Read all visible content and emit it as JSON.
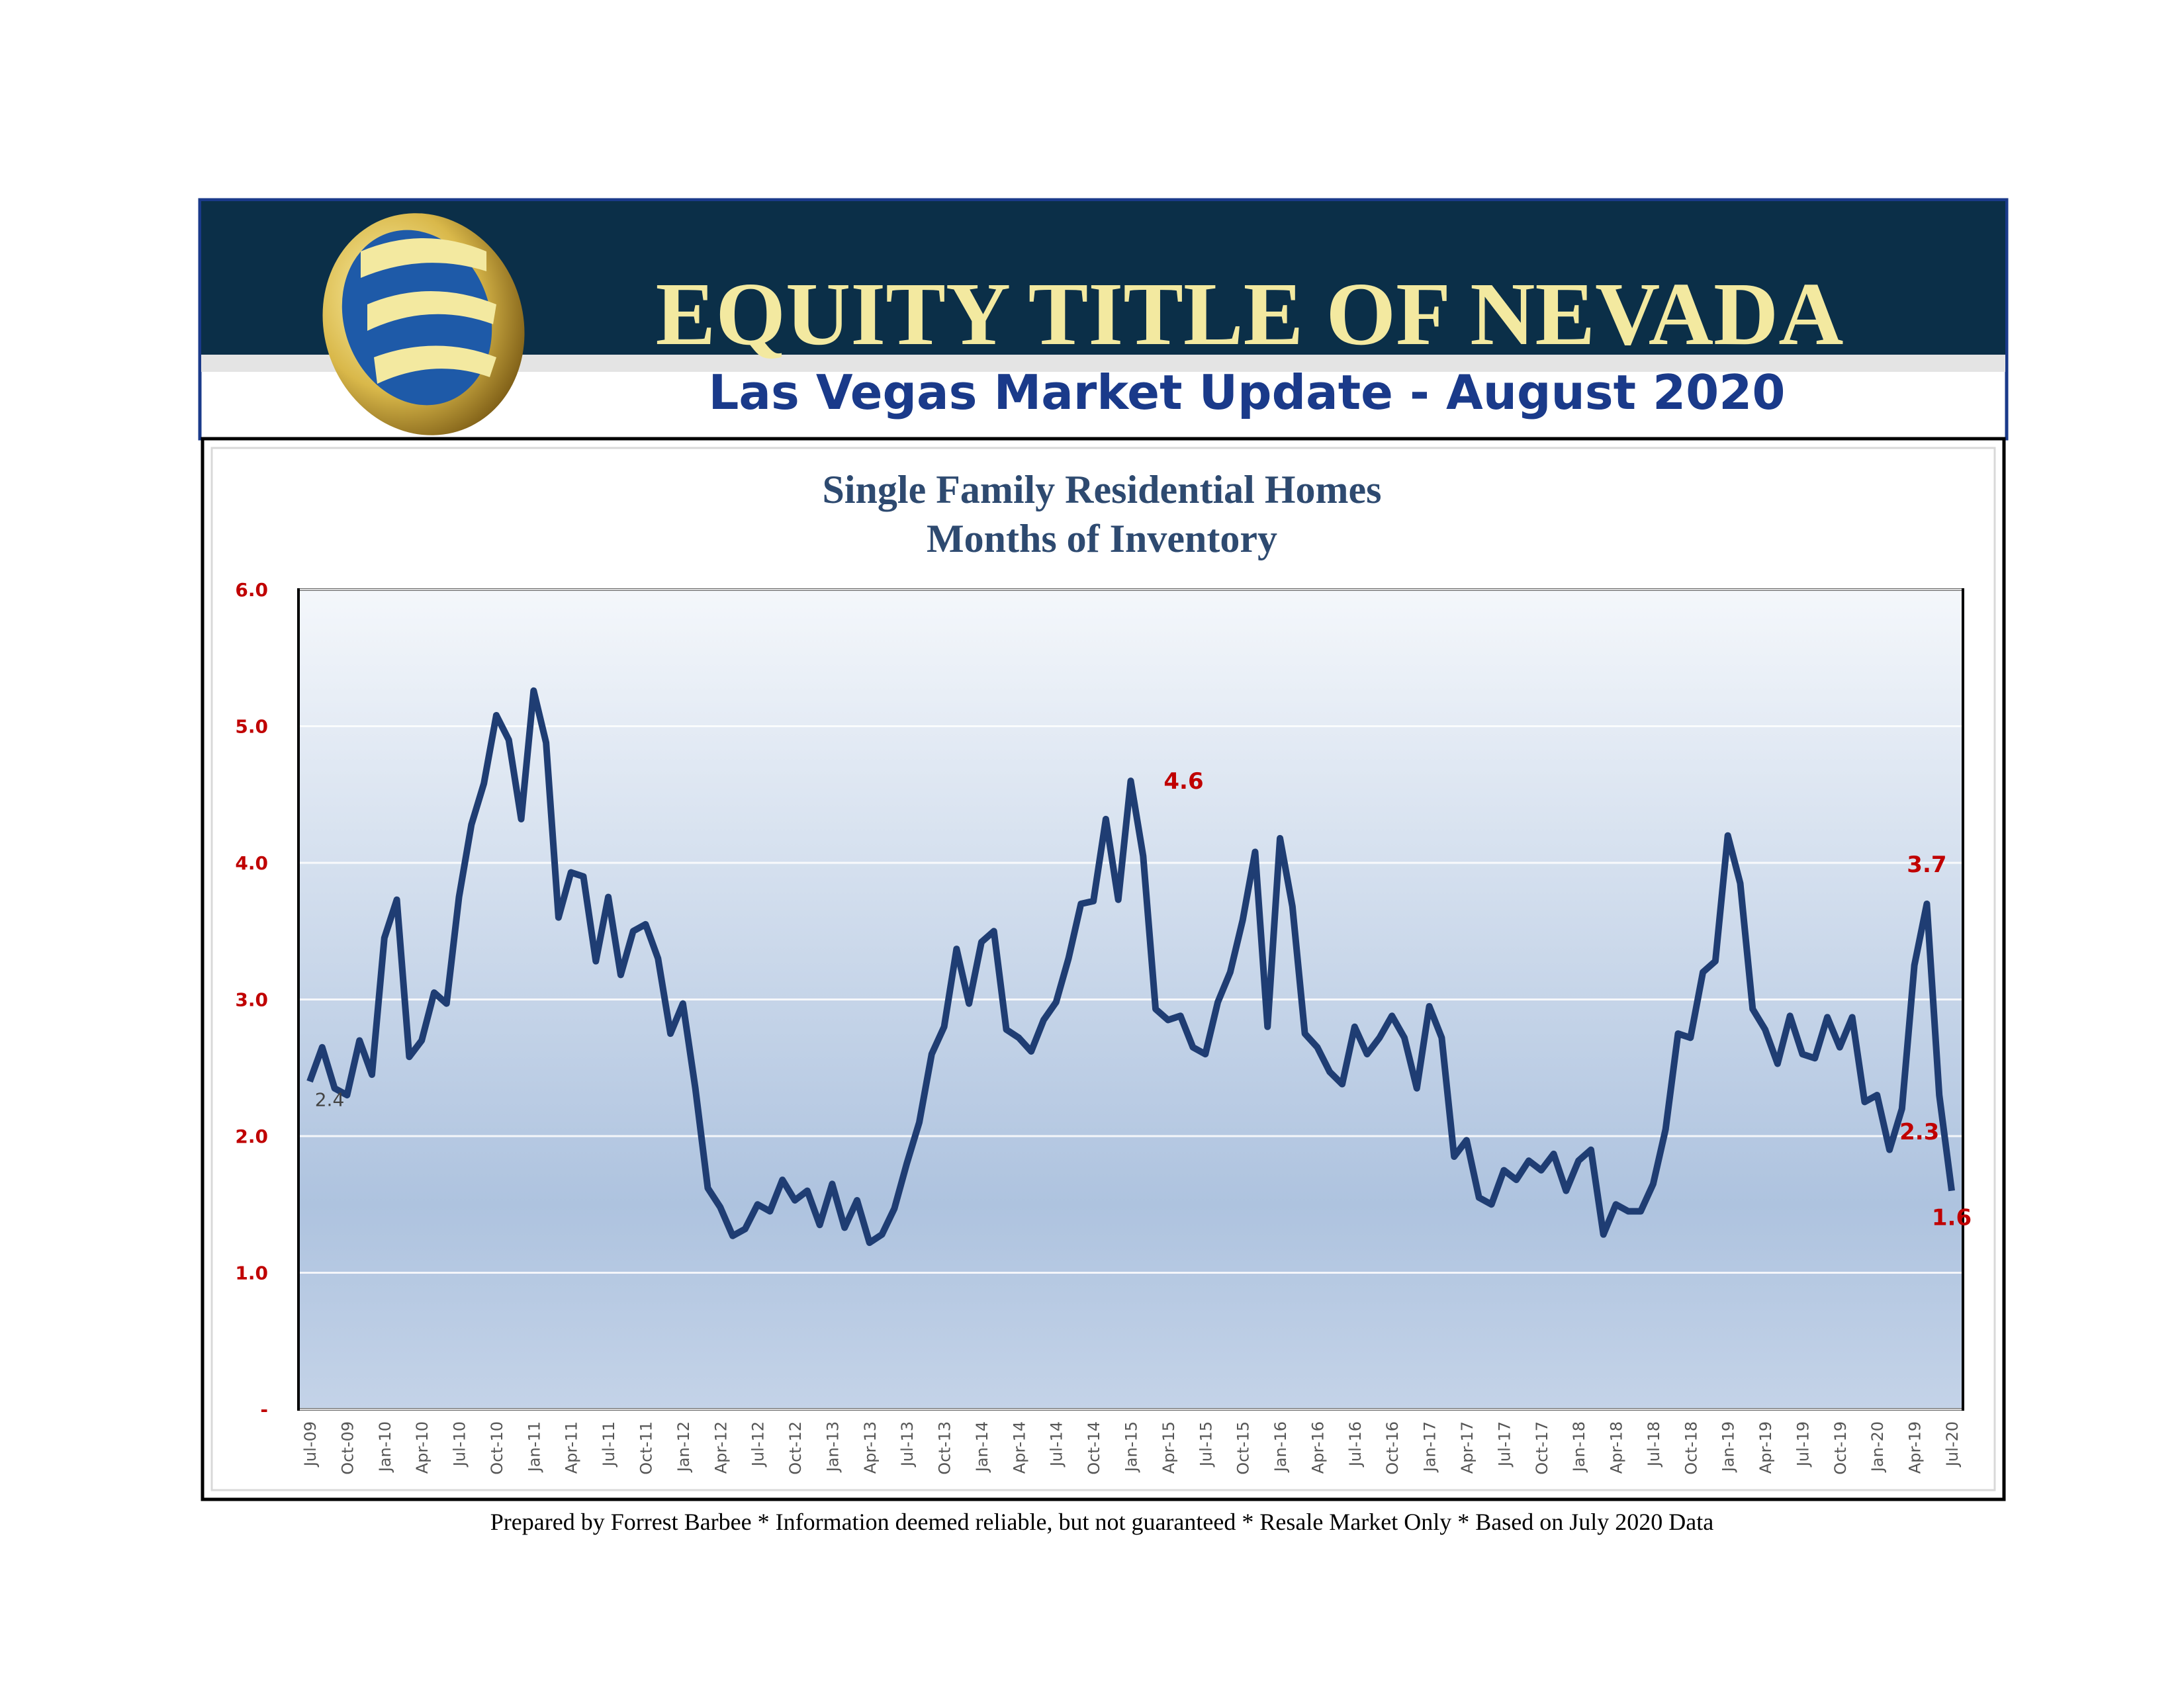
{
  "header": {
    "title": "EQUITY TITLE OF NEVADA",
    "subtitle": "Las Vegas Market Update - August 2020"
  },
  "chart_data": {
    "type": "line",
    "title": [
      "Single Family Residential Homes",
      "Months of Inventory"
    ],
    "categories": [
      "Jul-09",
      null,
      null,
      "Oct-09",
      null,
      null,
      "Jan-10",
      null,
      null,
      "Apr-10",
      null,
      null,
      "Jul-10",
      null,
      null,
      "Oct-10",
      null,
      null,
      "Jan-11",
      null,
      null,
      "Apr-11",
      null,
      null,
      "Jul-11",
      null,
      null,
      "Oct-11",
      null,
      null,
      "Jan-12",
      null,
      null,
      "Apr-12",
      null,
      null,
      "Jul-12",
      null,
      null,
      "Oct-12",
      null,
      null,
      "Jan-13",
      null,
      null,
      "Apr-13",
      null,
      null,
      "Jul-13",
      null,
      null,
      "Oct-13",
      null,
      null,
      "Jan-14",
      null,
      null,
      "Apr-14",
      null,
      null,
      "Jul-14",
      null,
      null,
      "Oct-14",
      null,
      null,
      "Jan-15",
      null,
      null,
      "Apr-15",
      null,
      null,
      "Jul-15",
      null,
      null,
      "Oct-15",
      null,
      null,
      "Jan-16",
      null,
      null,
      "Apr-16",
      null,
      null,
      "Jul-16",
      null,
      null,
      "Oct-16",
      null,
      null,
      "Jan-17",
      null,
      null,
      "Apr-17",
      null,
      null,
      "Jul-17",
      null,
      null,
      "Oct-17",
      null,
      null,
      "Jan-18",
      null,
      null,
      "Apr-18",
      null,
      null,
      "Jul-18",
      null,
      null,
      "Oct-18",
      null,
      null,
      "Jan-19",
      null,
      null,
      "Apr-19",
      null,
      null,
      "Jul-19",
      null,
      null,
      "Oct-19",
      null,
      null,
      "Jan-20",
      null,
      null,
      "Apr-19",
      null,
      null,
      "Jul-20"
    ],
    "values": [
      2.4,
      2.65,
      2.35,
      2.3,
      2.7,
      2.45,
      3.45,
      3.73,
      2.58,
      2.7,
      3.05,
      2.97,
      3.75,
      4.28,
      4.58,
      5.08,
      4.9,
      4.32,
      5.26,
      4.88,
      3.6,
      3.93,
      3.9,
      3.28,
      3.75,
      3.18,
      3.5,
      3.55,
      3.3,
      2.75,
      2.97,
      2.35,
      1.62,
      1.48,
      1.27,
      1.32,
      1.5,
      1.45,
      1.68,
      1.53,
      1.6,
      1.35,
      1.65,
      1.33,
      1.53,
      1.22,
      1.28,
      1.47,
      1.8,
      2.1,
      2.6,
      2.8,
      3.37,
      2.97,
      3.42,
      3.5,
      2.78,
      2.72,
      2.62,
      2.85,
      2.98,
      3.3,
      3.7,
      3.72,
      4.32,
      3.73,
      4.6,
      4.05,
      2.93,
      2.85,
      2.88,
      2.65,
      2.6,
      2.98,
      3.2,
      3.58,
      4.08,
      2.8,
      4.18,
      3.68,
      2.75,
      2.65,
      2.47,
      2.38,
      2.8,
      2.6,
      2.72,
      2.88,
      2.72,
      2.35,
      2.95,
      2.72,
      1.85,
      1.97,
      1.55,
      1.5,
      1.75,
      1.68,
      1.82,
      1.75,
      1.87,
      1.6,
      1.82,
      1.9,
      1.28,
      1.5,
      1.45,
      1.45,
      1.65,
      2.05,
      2.75,
      2.72,
      3.2,
      3.28,
      4.2,
      3.85,
      2.93,
      2.78,
      2.53,
      2.88,
      2.6,
      2.57,
      2.87,
      2.65,
      2.87,
      2.25,
      2.3,
      1.9,
      2.2,
      3.25,
      3.7,
      2.3,
      1.6
    ],
    "value_labels": [
      "2.4",
      null,
      null,
      null,
      null,
      null,
      null,
      null,
      null,
      null,
      null,
      null,
      null,
      null,
      null,
      null,
      null,
      null,
      null,
      null,
      null,
      null,
      null,
      null,
      null,
      null,
      null,
      null,
      null,
      null,
      null,
      null,
      null,
      null,
      null,
      null,
      null,
      null,
      null,
      null,
      null,
      null,
      null,
      null,
      null,
      null,
      null,
      null,
      null,
      null,
      null,
      null,
      null,
      null,
      null,
      null,
      null,
      null,
      null,
      null,
      null,
      null,
      null,
      null,
      null,
      null,
      "4.6",
      null,
      null,
      null,
      null,
      null,
      null,
      null,
      null,
      null,
      null,
      null,
      null,
      null,
      null,
      null,
      null,
      null,
      null,
      null,
      null,
      null,
      null,
      null,
      null,
      null,
      null,
      null,
      null,
      null,
      null,
      null,
      null,
      null,
      null,
      null,
      null,
      null,
      null,
      null,
      null,
      null,
      null,
      null,
      null,
      null,
      null,
      null,
      null,
      null,
      null,
      null,
      null,
      null,
      null,
      null,
      null,
      null,
      null,
      null,
      null,
      null,
      null,
      null,
      "3.7",
      "2.3",
      "1.6"
    ],
    "color": "#1f3d73",
    "ylim": [
      0,
      6
    ],
    "yticks": [
      {
        "value": 0,
        "label": "-"
      },
      {
        "value": 1,
        "label": "1.0"
      },
      {
        "value": 2,
        "label": "2.0"
      },
      {
        "value": 3,
        "label": "3.0"
      },
      {
        "value": 4,
        "label": "4.0"
      },
      {
        "value": 5,
        "label": "5.0"
      },
      {
        "value": 6,
        "label": "6.0"
      }
    ],
    "grid": true
  },
  "footer": "Prepared by Forrest Barbee * Information deemed reliable, but not guaranteed * Resale Market Only * Based on July 2020 Data"
}
